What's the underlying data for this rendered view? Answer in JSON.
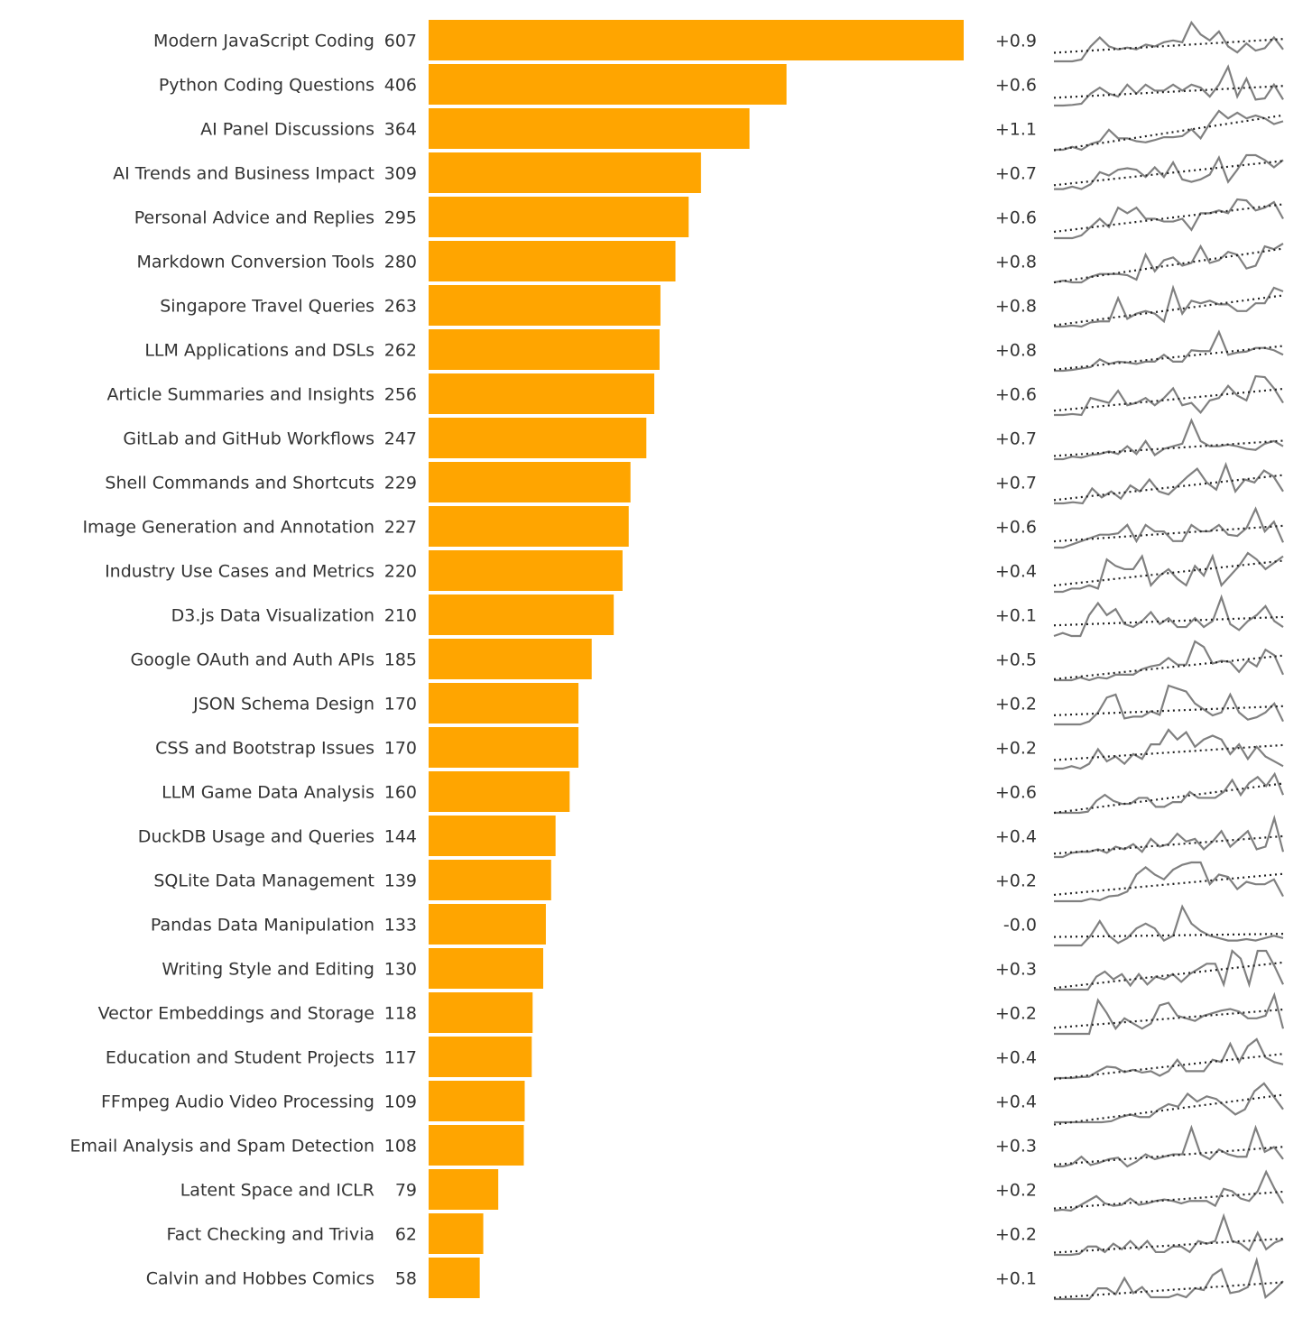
{
  "chart_data": {
    "type": "bar",
    "orientation": "horizontal",
    "bar_color": "#FFA500",
    "sparkline_color": "#808080",
    "trend_color": "#222222",
    "categories": [
      "Modern JavaScript Coding",
      "Python Coding Questions",
      "AI Panel Discussions",
      "AI Trends and Business Impact",
      "Personal Advice and Replies",
      "Markdown Conversion Tools",
      "Singapore Travel Queries",
      "LLM Applications and DSLs",
      "Article Summaries and Insights",
      "GitLab and GitHub Workflows",
      "Shell Commands and Shortcuts",
      "Image Generation and Annotation",
      "Industry Use Cases and Metrics",
      "D3.js Data Visualization",
      "Google OAuth and Auth APIs",
      "JSON Schema Design",
      "CSS and Bootstrap Issues",
      "LLM Game Data Analysis",
      "DuckDB Usage and Queries",
      "SQLite Data Management",
      "Pandas Data Manipulation",
      "Writing Style and Editing",
      "Vector Embeddings and Storage",
      "Education and Student Projects",
      "FFmpeg Audio Video Processing",
      "Email Analysis and Spam Detection",
      "Latent Space and ICLR",
      "Fact Checking and Trivia",
      "Calvin and Hobbes Comics"
    ],
    "values": [
      607,
      406,
      364,
      309,
      295,
      280,
      263,
      262,
      256,
      247,
      229,
      227,
      220,
      210,
      185,
      170,
      170,
      160,
      144,
      139,
      133,
      130,
      118,
      117,
      109,
      108,
      79,
      62,
      58
    ],
    "trend_labels": [
      "+0.9",
      "+0.6",
      "+1.1",
      "+0.7",
      "+0.6",
      "+0.8",
      "+0.8",
      "+0.8",
      "+0.6",
      "+0.7",
      "+0.7",
      "+0.6",
      "+0.4",
      "+0.1",
      "+0.5",
      "+0.2",
      "+0.2",
      "+0.6",
      "+0.4",
      "+0.2",
      "-0.0",
      "+0.3",
      "+0.2",
      "+0.4",
      "+0.4",
      "+0.3",
      "+0.2",
      "+0.2",
      "+0.1"
    ],
    "sparklines": [
      [
        0,
        0,
        0,
        0.3,
        2.5,
        4,
        2.5,
        2,
        2.3,
        2,
        2.8,
        2.5,
        3.2,
        3.5,
        3.2,
        6.5,
        4.5,
        3.5,
        5,
        2.5,
        1.5,
        3,
        1.8,
        2.2,
        4,
        2
      ],
      [
        0,
        0,
        0.1,
        0.3,
        2,
        3,
        2,
        1.5,
        3.5,
        2,
        3.5,
        2.5,
        2.5,
        3.5,
        2.5,
        3.5,
        3,
        1.5,
        3.5,
        6.5,
        1.5,
        4.5,
        1,
        1.2,
        3.5,
        1
      ],
      [
        0,
        0,
        0.5,
        0,
        1,
        1.5,
        3.5,
        2,
        2,
        1.5,
        1.3,
        1.7,
        2.2,
        2.2,
        2.4,
        3.6,
        2,
        4.6,
        6.8,
        5.5,
        6.5,
        5.5,
        6,
        5.5,
        4.5,
        5
      ],
      [
        1,
        1,
        1.5,
        1,
        2,
        4.5,
        3.8,
        5,
        5.3,
        5,
        3.5,
        5.5,
        3.5,
        6.5,
        3,
        2.5,
        3,
        4,
        7.5,
        2.5,
        5,
        8,
        8,
        7,
        5.5,
        7
      ],
      [
        0,
        0,
        0,
        0.5,
        2,
        3.5,
        2,
        5.5,
        4.5,
        5.5,
        3.5,
        3.5,
        3,
        3,
        3.5,
        1.5,
        4.5,
        4.5,
        5,
        4.5,
        7,
        6.8,
        5,
        5.5,
        6.5,
        3.5
      ],
      [
        0,
        0.3,
        0,
        0,
        1,
        1.5,
        1.5,
        1.5,
        1.3,
        0.5,
        5,
        2,
        4,
        4.5,
        3,
        3.5,
        6.5,
        3.5,
        4,
        5.5,
        5,
        2.5,
        3,
        6.5,
        6,
        7
      ],
      [
        0,
        0,
        0.2,
        0,
        0.8,
        1,
        1,
        5.5,
        1.5,
        2.5,
        3,
        2.5,
        1,
        7.5,
        2.5,
        5,
        4.5,
        5,
        4.3,
        4.3,
        3,
        3,
        4.5,
        4.5,
        7.5,
        6.8
      ],
      [
        0,
        0,
        0.2,
        0.5,
        0.8,
        2.5,
        1.5,
        2,
        1.8,
        1.5,
        2,
        2,
        3.5,
        2,
        2,
        4.5,
        4.3,
        4.3,
        8.5,
        3.5,
        4,
        4.2,
        5,
        5,
        4.5,
        3.5
      ],
      [
        0,
        0,
        0.2,
        0,
        3.5,
        3,
        2.5,
        5,
        2,
        2.5,
        3.5,
        2,
        3.5,
        5.5,
        2,
        2.5,
        0.5,
        3,
        3.5,
        6,
        4,
        3,
        8,
        7.8,
        5.5,
        2.5
      ],
      [
        0,
        0,
        0.5,
        0.3,
        0.8,
        1,
        1.5,
        1,
        2.5,
        1,
        3.5,
        0.8,
        2,
        2.5,
        3,
        7.5,
        3.5,
        2.5,
        2.5,
        2.8,
        2.5,
        2,
        1.8,
        3,
        3.5,
        2.5
      ],
      [
        0,
        0,
        0.2,
        0,
        2.5,
        1,
        2,
        0.8,
        3,
        2,
        4,
        2,
        1.5,
        3,
        4.5,
        5.8,
        3.5,
        2.3,
        6.5,
        2,
        4,
        3.5,
        5.5,
        4.5,
        2
      ],
      [
        0,
        0,
        0.5,
        1,
        1.5,
        2,
        2,
        2.2,
        3.5,
        1,
        3.5,
        2.5,
        2.5,
        1,
        1,
        3.5,
        2.5,
        2.5,
        3.5,
        2,
        1.8,
        3,
        6,
        2.5,
        4,
        0.8
      ],
      [
        0,
        0,
        0.5,
        0.5,
        1,
        0.5,
        5,
        4,
        3.5,
        3.5,
        5.5,
        1,
        2.5,
        3.5,
        2,
        1,
        4,
        2.5,
        5.5,
        1,
        2.5,
        4,
        6,
        5,
        3.5,
        4.5,
        5.5
      ],
      [
        0,
        0.5,
        0,
        0,
        3.5,
        5.5,
        3.5,
        4.5,
        2,
        1.5,
        2.5,
        4,
        2,
        3,
        1.5,
        1.5,
        3,
        1.5,
        2.5,
        6.5,
        2,
        1,
        2.5,
        3.5,
        5,
        2.5,
        1.5
      ],
      [
        0,
        0,
        0,
        0.5,
        0,
        0.5,
        0.3,
        1,
        1,
        1,
        2,
        2.5,
        2.8,
        4,
        2.8,
        2.8,
        7,
        6,
        3,
        3.5,
        3.3,
        1.5,
        3.5,
        2.5,
        5.5,
        4.5,
        1
      ],
      [
        0,
        0,
        0,
        0,
        0.5,
        2,
        4.5,
        5,
        1,
        1.3,
        1.3,
        2.2,
        1.6,
        6.5,
        6,
        5.5,
        3.5,
        2.5,
        1.5,
        2,
        5,
        2,
        0.8,
        1.2,
        2,
        3.5,
        0.5
      ],
      [
        0,
        0,
        0.5,
        0,
        1,
        4,
        1.5,
        2.5,
        1,
        3,
        2,
        5,
        5,
        8,
        6,
        7.5,
        4.5,
        6,
        6.8,
        6,
        3,
        5,
        2,
        4.5,
        2.5,
        1.5,
        0.5
      ],
      [
        0,
        0,
        0,
        0,
        0.2,
        2,
        3,
        2,
        1.5,
        1.5,
        2.5,
        2.5,
        1,
        1,
        1.8,
        1.8,
        3.5,
        2.5,
        2.5,
        2.5,
        3.5,
        5.5,
        3,
        5,
        6,
        4.5,
        6.5,
        3
      ],
      [
        0,
        0,
        0.8,
        1,
        1,
        1.5,
        0.8,
        2,
        1.5,
        2.5,
        1,
        3.5,
        2,
        2.5,
        4.5,
        3,
        3.5,
        1.5,
        3,
        5,
        2,
        3.5,
        5,
        1.5,
        2,
        7.5,
        1
      ],
      [
        0,
        0,
        0,
        0,
        0.5,
        0.2,
        1,
        1.2,
        2,
        5.5,
        7,
        5.5,
        4.5,
        6.5,
        7.5,
        8,
        8,
        3.5,
        5.5,
        5,
        2.5,
        4,
        3.5,
        3.5,
        4.5,
        1
      ],
      [
        0,
        0,
        0,
        0,
        2,
        5,
        2,
        0.5,
        1.5,
        3.5,
        4.5,
        3.5,
        1,
        2,
        8,
        4.5,
        3,
        2,
        1.5,
        1,
        1,
        1.3,
        1,
        1.5,
        2,
        1.5
      ],
      [
        0,
        0,
        0,
        0,
        0,
        2.5,
        3.5,
        2,
        3,
        0.8,
        3,
        1,
        2.5,
        2,
        3,
        1.5,
        3,
        4,
        5,
        5,
        1,
        7.5,
        6,
        1,
        7.5,
        7.5,
        4.5,
        1
      ],
      [
        0,
        0,
        0,
        0,
        0,
        6.5,
        4,
        1,
        3,
        2,
        1,
        2,
        5.5,
        6,
        3.5,
        3,
        2.5,
        3.5,
        4,
        4.5,
        4.8,
        4.3,
        3,
        3,
        3.5,
        7.5,
        1
      ],
      [
        0,
        0,
        0,
        0.2,
        0.3,
        1.5,
        2.5,
        2.3,
        1.3,
        1.8,
        1.2,
        1.5,
        0.5,
        1.5,
        4,
        1.5,
        1.5,
        1.5,
        4,
        3.5,
        7.5,
        3.5,
        7,
        8.5,
        4.5,
        3.5,
        3
      ],
      [
        0,
        0,
        0,
        0,
        0,
        0,
        0.2,
        1,
        1.5,
        1,
        1,
        2.5,
        3.5,
        3,
        5.5,
        4,
        5,
        4.5,
        3,
        1.5,
        2.5,
        6,
        7.5,
        5,
        2.5
      ],
      [
        0,
        0,
        0.5,
        2,
        0.3,
        0.8,
        1.5,
        1.8,
        0,
        1,
        2.5,
        1.5,
        2,
        2.5,
        2.5,
        8,
        2.5,
        1.5,
        3.5,
        2.5,
        2,
        2,
        8,
        3,
        4,
        1.5
      ],
      [
        0,
        0.2,
        0,
        1,
        2,
        3,
        1.5,
        1,
        1.2,
        2.5,
        1.2,
        1.5,
        2,
        2.3,
        2,
        1.5,
        2,
        2,
        2,
        1,
        4.5,
        4,
        2.5,
        2,
        4,
        8,
        4.5,
        1.5
      ],
      [
        0,
        0,
        0,
        0.2,
        1.5,
        1.5,
        0.5,
        2,
        1,
        2.5,
        1,
        2.5,
        0.5,
        0.5,
        1.5,
        1.5,
        0.5,
        2.5,
        2,
        2.5,
        7,
        2.5,
        2,
        0.8,
        4,
        1,
        2.2,
        2.8
      ],
      [
        0,
        0,
        0,
        0,
        0,
        1.8,
        1.8,
        0.8,
        3.5,
        1,
        2,
        0.3,
        0.3,
        0.3,
        0.8,
        0.3,
        1.8,
        1.5,
        4,
        5,
        1,
        1.3,
        2,
        6.5,
        0.3,
        1.5,
        3
      ]
    ]
  }
}
